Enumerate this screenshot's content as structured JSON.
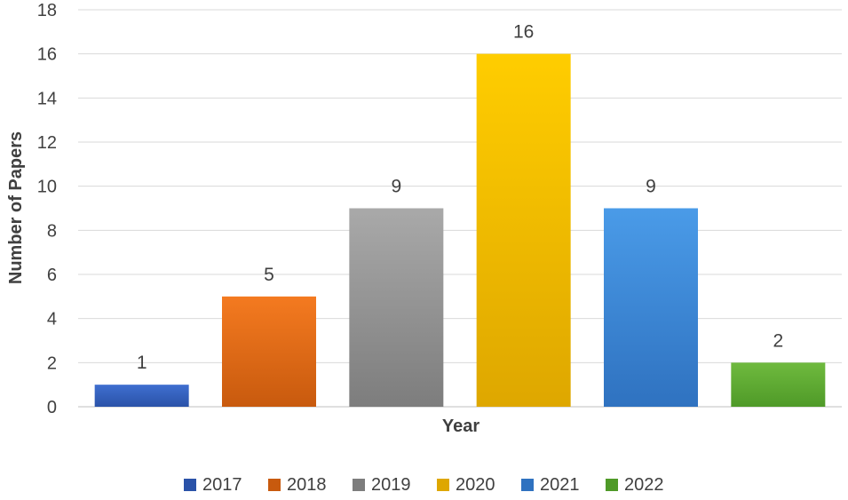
{
  "chart_data": {
    "type": "bar",
    "title": "",
    "xlabel": "Year",
    "ylabel": "Number of Papers",
    "ylim": [
      0,
      18
    ],
    "ytick_step": 2,
    "grid": true,
    "legend_position": "bottom",
    "categories": [
      "2017",
      "2018",
      "2019",
      "2020",
      "2021",
      "2022"
    ],
    "values": [
      1,
      5,
      9,
      16,
      9,
      2
    ],
    "data_labels": [
      "1",
      "5",
      "9",
      "16",
      "9",
      "2"
    ],
    "colors": [
      {
        "top": "#3f6fd0",
        "bottom": "#2a52a8"
      },
      {
        "top": "#f47a20",
        "bottom": "#c85a0e"
      },
      {
        "top": "#a9a9a9",
        "bottom": "#7d7d7d"
      },
      {
        "top": "#ffcd00",
        "bottom": "#dea700"
      },
      {
        "top": "#4a9be8",
        "bottom": "#2f72c0"
      },
      {
        "top": "#6fba3e",
        "bottom": "#4f9a28"
      }
    ]
  }
}
